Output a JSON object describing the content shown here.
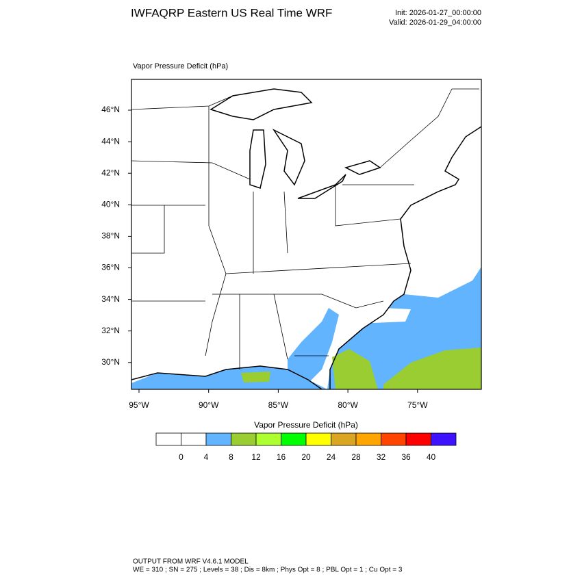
{
  "header": {
    "title": "IWFAQRP Eastern US Real Time WRF",
    "init": "Init: 2026-01-27_00:00:00",
    "valid": "Valid: 2026-01-29_04:00:00"
  },
  "map": {
    "field_label": "Vapor Pressure Deficit   (hPa)",
    "lat_labels": [
      "46°N",
      "44°N",
      "42°N",
      "40°N",
      "38°N",
      "36°N",
      "34°N",
      "32°N",
      "30°N"
    ],
    "lon_labels": [
      "95°W",
      "90°W",
      "85°W",
      "80°W",
      "75°W"
    ]
  },
  "colorbar": {
    "title": "Vapor Pressure Deficit  (hPa)",
    "colors": [
      "#ffffff",
      "#ffffff",
      "#62b4ff",
      "#9acd32",
      "#adff2f",
      "#00ff00",
      "#ffff00",
      "#daa520",
      "#ffa500",
      "#ff4500",
      "#ff0000",
      "#3f12ff"
    ],
    "ticks": [
      0,
      4,
      8,
      12,
      16,
      20,
      24,
      28,
      32,
      36,
      40
    ]
  },
  "footer": {
    "line1": "OUTPUT FROM WRF V4.6.1 MODEL",
    "line2": "WE = 310 ; SN = 275 ; Levels = 38 ; Dis = 8km ; Phys Opt = 8 ; PBL Opt = 1 ; Cu Opt = 3"
  }
}
